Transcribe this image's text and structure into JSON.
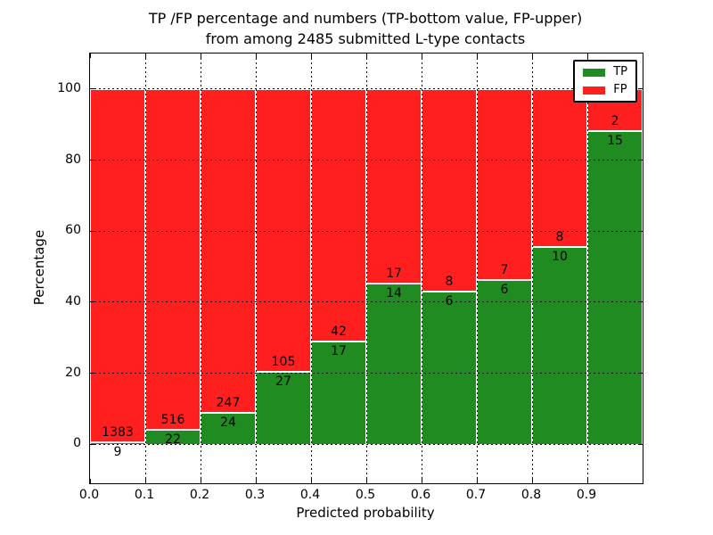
{
  "chart_data": {
    "type": "bar",
    "subtype": "stacked-percentage",
    "title_line1": "TP /FP percentage and numbers (TP-bottom value, FP-upper)",
    "title_line2": "from among 2485 submitted L-type contacts",
    "xlabel": "Predicted probability",
    "ylabel": "Percentage",
    "total_contacts": 2485,
    "xlim": [
      0.0,
      1.0
    ],
    "ylim": [
      -11,
      110
    ],
    "x_tick_labels": [
      "0.0",
      "0.1",
      "0.2",
      "0.3",
      "0.4",
      "0.5",
      "0.6",
      "0.7",
      "0.8",
      "0.9"
    ],
    "y_ticks": [
      0,
      20,
      40,
      60,
      80,
      100
    ],
    "grid": true,
    "categories": [
      "0.0-0.1",
      "0.1-0.2",
      "0.2-0.3",
      "0.3-0.4",
      "0.4-0.5",
      "0.5-0.6",
      "0.6-0.7",
      "0.7-0.8",
      "0.8-0.9",
      "0.9-1.0"
    ],
    "series": [
      {
        "name": "TP",
        "color": "#208b20",
        "values": [
          9,
          22,
          24,
          27,
          17,
          14,
          6,
          6,
          10,
          15
        ]
      },
      {
        "name": "FP",
        "color": "#ff1f1f",
        "values": [
          1383,
          516,
          247,
          105,
          42,
          17,
          8,
          7,
          8,
          2
        ]
      }
    ],
    "tp_percent": [
      0.65,
      4.09,
      8.86,
      20.45,
      28.81,
      45.16,
      42.86,
      46.15,
      55.56,
      88.24
    ],
    "colors": {
      "tp": "#208b20",
      "fp": "#ff1f1f",
      "grid": "#000000",
      "bar_edge": "#ffffff"
    },
    "legend": {
      "position": "upper right",
      "entries": [
        {
          "label": "TP",
          "color": "#208b20"
        },
        {
          "label": "FP",
          "color": "#ff1f1f"
        }
      ]
    }
  }
}
